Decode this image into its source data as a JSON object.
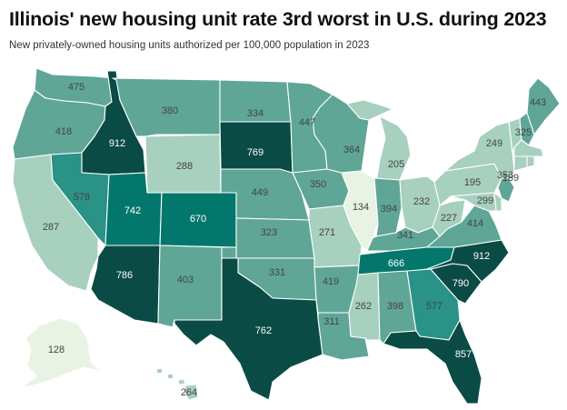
{
  "header": {
    "title": "Illinois' new housing unit rate 3rd worst in U.S. during 2023",
    "subtitle": "New privately-owned housing units authorized per 100,000 population in 2023"
  },
  "colors": {
    "light": "#e8f3e4",
    "pale": "#a7d0bf",
    "mid": "#5fa697",
    "teal": "#2a9286",
    "strong": "#03776c",
    "dark": "#0a4b45",
    "text_dark": "#444444",
    "text_light": "#ffffff"
  },
  "map_data": {
    "type": "choropleth",
    "metric": "New privately-owned housing units authorized per 100,000 population",
    "year": 2023,
    "states": [
      {
        "id": "WA",
        "value": 475
      },
      {
        "id": "OR",
        "value": 418
      },
      {
        "id": "CA",
        "value": 287
      },
      {
        "id": "ID",
        "value": 912
      },
      {
        "id": "NV",
        "value": 578
      },
      {
        "id": "MT",
        "value": 380
      },
      {
        "id": "WY",
        "value": 288
      },
      {
        "id": "UT",
        "value": 742
      },
      {
        "id": "AZ",
        "value": 786
      },
      {
        "id": "CO",
        "value": 670
      },
      {
        "id": "NM",
        "value": 403
      },
      {
        "id": "ND",
        "value": 334
      },
      {
        "id": "SD",
        "value": 769
      },
      {
        "id": "NE",
        "value": 449
      },
      {
        "id": "KS",
        "value": 323
      },
      {
        "id": "OK",
        "value": 331
      },
      {
        "id": "TX",
        "value": 762
      },
      {
        "id": "MN",
        "value": 447
      },
      {
        "id": "IA",
        "value": 350
      },
      {
        "id": "MO",
        "value": 271
      },
      {
        "id": "AR",
        "value": 419
      },
      {
        "id": "LA",
        "value": 311
      },
      {
        "id": "WI",
        "value": 364
      },
      {
        "id": "IL",
        "value": 134
      },
      {
        "id": "MI",
        "value": 205
      },
      {
        "id": "IN",
        "value": 394
      },
      {
        "id": "OH",
        "value": 232
      },
      {
        "id": "KY",
        "value": 341
      },
      {
        "id": "TN",
        "value": 666
      },
      {
        "id": "MS",
        "value": 262
      },
      {
        "id": "AL",
        "value": 398
      },
      {
        "id": "GA",
        "value": 577
      },
      {
        "id": "FL",
        "value": 857
      },
      {
        "id": "SC",
        "value": 790
      },
      {
        "id": "NC",
        "value": 912
      },
      {
        "id": "VA",
        "value": 414
      },
      {
        "id": "WV",
        "value": 227
      },
      {
        "id": "PA",
        "value": 195
      },
      {
        "id": "NY",
        "value": 249
      },
      {
        "id": "ME",
        "value": 443
      },
      {
        "id": "NH",
        "value": 325
      },
      {
        "id": "NJ",
        "value": 353
      },
      {
        "id": "MD",
        "value": 299
      },
      {
        "id": "DE",
        "value": 189
      },
      {
        "id": "VT",
        "value": null
      },
      {
        "id": "MA",
        "value": null
      },
      {
        "id": "CT",
        "value": null
      },
      {
        "id": "RI",
        "value": null
      },
      {
        "id": "AK",
        "value": 128
      },
      {
        "id": "HI",
        "value": 264
      }
    ]
  }
}
